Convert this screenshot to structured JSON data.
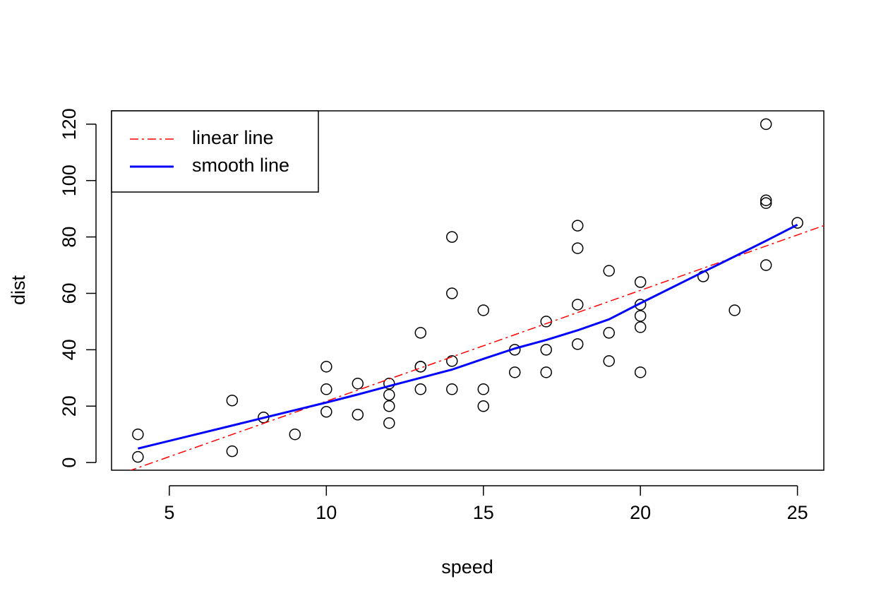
{
  "chart_data": {
    "type": "scatter",
    "x_label": "speed",
    "y_label": "dist",
    "x": [
      4,
      4,
      7,
      7,
      8,
      9,
      10,
      10,
      10,
      11,
      11,
      12,
      12,
      12,
      12,
      13,
      13,
      13,
      13,
      14,
      14,
      14,
      14,
      15,
      15,
      15,
      16,
      16,
      17,
      17,
      17,
      18,
      18,
      18,
      18,
      19,
      19,
      19,
      20,
      20,
      20,
      20,
      20,
      22,
      23,
      24,
      24,
      24,
      24,
      25
    ],
    "values": [
      2,
      10,
      4,
      22,
      16,
      10,
      18,
      26,
      34,
      17,
      28,
      14,
      20,
      24,
      28,
      26,
      34,
      34,
      46,
      26,
      36,
      60,
      80,
      20,
      26,
      54,
      32,
      40,
      32,
      40,
      50,
      42,
      56,
      76,
      84,
      36,
      46,
      68,
      32,
      48,
      52,
      56,
      64,
      66,
      54,
      70,
      92,
      93,
      120,
      85
    ],
    "color": "#000000",
    "fits": [
      {
        "name": "linear line",
        "color": "#ff0000",
        "dash": "dashdot",
        "intercept": -17.579,
        "slope": 3.932
      },
      {
        "name": "smooth line",
        "color": "#0000ff",
        "dash": "solid",
        "x": [
          4,
          7,
          8,
          9,
          10,
          11,
          12,
          13,
          14,
          15,
          16,
          17,
          18,
          19,
          20,
          22,
          23,
          24,
          25
        ],
        "values": [
          4.97,
          13.12,
          15.86,
          18.58,
          21.28,
          24.13,
          27.12,
          30.03,
          32.96,
          36.76,
          40.44,
          43.46,
          46.89,
          50.79,
          56.49,
          67.59,
          73.08,
          78.64,
          84.33
        ]
      }
    ],
    "xlim": [
      3.16,
      25.84
    ],
    "ylim": [
      -2.72,
      124.72
    ],
    "xticks": [
      5,
      10,
      15,
      20,
      25
    ],
    "yticks": [
      0,
      20,
      40,
      60,
      80,
      100,
      120
    ],
    "legend": "top-left"
  }
}
